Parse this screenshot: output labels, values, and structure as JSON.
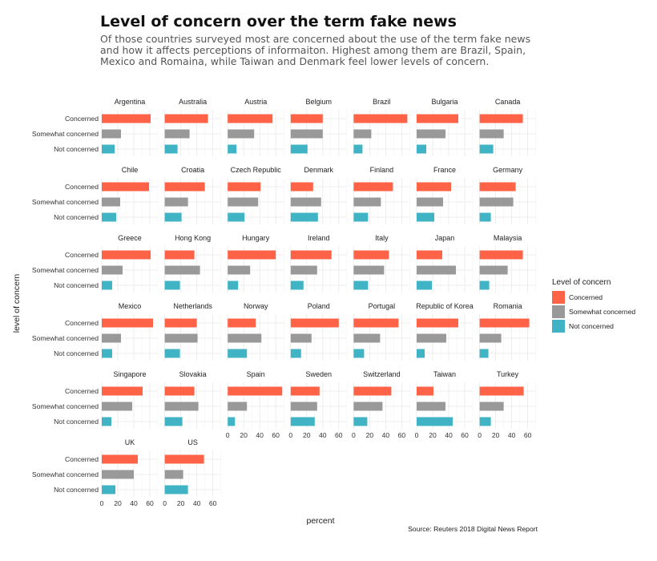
{
  "chart_data": {
    "type": "bar",
    "title": "Level of concern over the term fake news",
    "subtitle": "Of those countries surveyed most are concerned about the use of the term fake news and how it affects perceptions of informaiton. Highest among them are Brazil, Spain, Mexico and Romaina, while Taiwan and Denmark feel lower levels of concern.",
    "xlabel": "percent",
    "ylabel": "level of concern",
    "xlim": [
      0,
      70
    ],
    "xticks": [
      "0",
      "20",
      "40",
      "60"
    ],
    "categories": [
      "Concerned",
      "Somewhat concerned",
      "Not concerned"
    ],
    "legend": {
      "title": "Level of concern",
      "position": "right",
      "items": [
        {
          "label": "Concerned",
          "color": "#FF6347"
        },
        {
          "label": "Somewhat concerned",
          "color": "#999999"
        },
        {
          "label": "Not concerned",
          "color": "#40B4C4"
        }
      ]
    },
    "grid": true,
    "source": "Source: Reuters 2018 Digital News Report",
    "facets": [
      {
        "name": "Argentina",
        "values": [
          61,
          24,
          16
        ]
      },
      {
        "name": "Australia",
        "values": [
          54,
          31,
          16
        ]
      },
      {
        "name": "Austria",
        "values": [
          56,
          33,
          11
        ]
      },
      {
        "name": "Belgium",
        "values": [
          40,
          40,
          21
        ]
      },
      {
        "name": "Brazil",
        "values": [
          67,
          22,
          11
        ]
      },
      {
        "name": "Bulgaria",
        "values": [
          52,
          36,
          12
        ]
      },
      {
        "name": "Canada",
        "values": [
          54,
          30,
          17
        ]
      },
      {
        "name": "Chile",
        "values": [
          59,
          23,
          18
        ]
      },
      {
        "name": "Croatia",
        "values": [
          50,
          29,
          21
        ]
      },
      {
        "name": "Czech Republic",
        "values": [
          41,
          38,
          21
        ]
      },
      {
        "name": "Denmark",
        "values": [
          28,
          38,
          34
        ]
      },
      {
        "name": "Finland",
        "values": [
          49,
          34,
          18
        ]
      },
      {
        "name": "France",
        "values": [
          43,
          33,
          22
        ]
      },
      {
        "name": "Germany",
        "values": [
          45,
          42,
          14
        ]
      },
      {
        "name": "Greece",
        "values": [
          61,
          26,
          13
        ]
      },
      {
        "name": "Hong Kong",
        "values": [
          37,
          44,
          19
        ]
      },
      {
        "name": "Hungary",
        "values": [
          60,
          28,
          13
        ]
      },
      {
        "name": "Ireland",
        "values": [
          51,
          33,
          16
        ]
      },
      {
        "name": "Italy",
        "values": [
          44,
          38,
          18
        ]
      },
      {
        "name": "Japan",
        "values": [
          32,
          49,
          19
        ]
      },
      {
        "name": "Malaysia",
        "values": [
          54,
          35,
          12
        ]
      },
      {
        "name": "Mexico",
        "values": [
          64,
          24,
          13
        ]
      },
      {
        "name": "Netherlands",
        "values": [
          40,
          41,
          19
        ]
      },
      {
        "name": "Norway",
        "values": [
          35,
          42,
          24
        ]
      },
      {
        "name": "Poland",
        "values": [
          60,
          26,
          13
        ]
      },
      {
        "name": "Portugal",
        "values": [
          56,
          33,
          13
        ]
      },
      {
        "name": "Republic of Korea",
        "values": [
          52,
          37,
          10
        ]
      },
      {
        "name": "Romania",
        "values": [
          62,
          27,
          11
        ]
      },
      {
        "name": "Singapore",
        "values": [
          51,
          38,
          12
        ]
      },
      {
        "name": "Slovakia",
        "values": [
          37,
          42,
          22
        ]
      },
      {
        "name": "Spain",
        "values": [
          68,
          24,
          9
        ]
      },
      {
        "name": "Sweden",
        "values": [
          36,
          33,
          30
        ]
      },
      {
        "name": "Switzerland",
        "values": [
          47,
          36,
          17
        ]
      },
      {
        "name": "Taiwan",
        "values": [
          21,
          36,
          45
        ]
      },
      {
        "name": "Turkey",
        "values": [
          55,
          30,
          14
        ]
      },
      {
        "name": "UK",
        "values": [
          45,
          40,
          17
        ]
      },
      {
        "name": "US",
        "values": [
          49,
          23,
          29
        ]
      }
    ]
  }
}
